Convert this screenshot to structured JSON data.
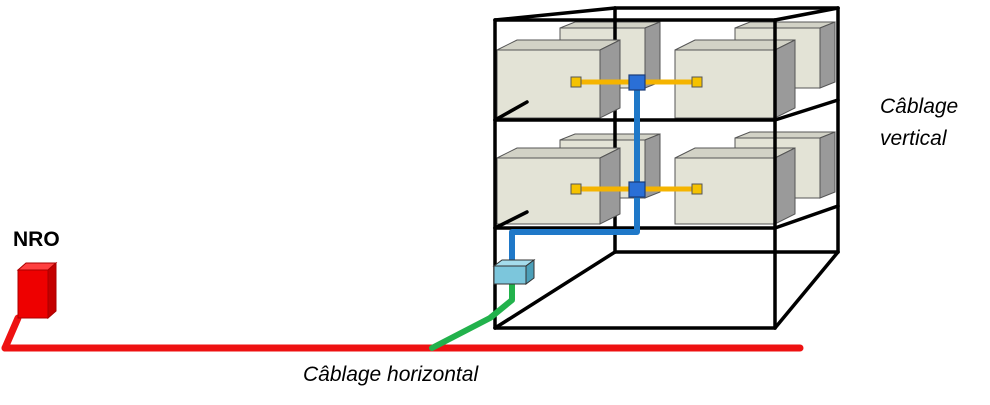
{
  "labels": {
    "nro": "NRO",
    "vertical_line1": "Câblage",
    "vertical_line2": "vertical",
    "horizontal": "Câblage horizontal"
  },
  "colors": {
    "backbone": "#ee1111",
    "nro_box": "#ee0000",
    "branch": "#22b24c",
    "riser": "#1f78c8",
    "junction": "#2a6fd6",
    "entry_box": "#7cc6dc",
    "dwelling_front": "#e3e3d6",
    "dwelling_side": "#9a9a9a",
    "dwelling_top": "#d2d2c6",
    "feeder": "#f5b400",
    "outlet": "#f5c200"
  }
}
